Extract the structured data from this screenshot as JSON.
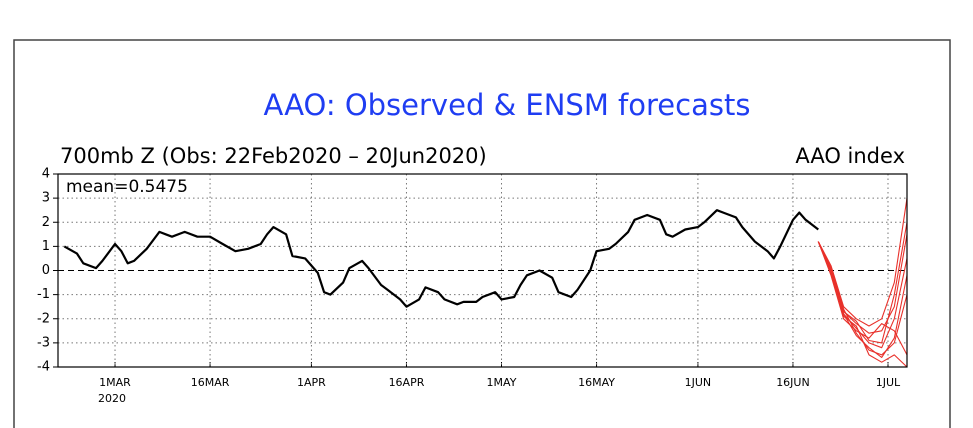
{
  "chart_data": {
    "type": "line",
    "title": "AAO: Observed & ENSM forecasts",
    "subtitle": "700mb Z (Obs: 22Feb2020 – 20Jun2020)",
    "y_label": "AAO index",
    "annotation": "mean=0.5475",
    "x_year_label": "2020",
    "xlim": [
      "2020-02-21",
      "2020-07-04"
    ],
    "xticks": [
      {
        "value": "2020-03-01",
        "label": "1MAR"
      },
      {
        "value": "2020-03-16",
        "label": "16MAR"
      },
      {
        "value": "2020-04-01",
        "label": "1APR"
      },
      {
        "value": "2020-04-16",
        "label": "16APR"
      },
      {
        "value": "2020-05-01",
        "label": "1MAY"
      },
      {
        "value": "2020-05-16",
        "label": "16MAY"
      },
      {
        "value": "2020-06-01",
        "label": "1JUN"
      },
      {
        "value": "2020-06-16",
        "label": "16JUN"
      },
      {
        "value": "2020-07-01",
        "label": "1JUL"
      }
    ],
    "ylim": [
      -4,
      4
    ],
    "yticks": [
      -4,
      -3,
      -2,
      -1,
      0,
      1,
      2,
      3,
      4
    ],
    "grid": true,
    "series": [
      {
        "color": "#000000",
        "x": [
          "2020-02-22",
          "2020-02-24",
          "2020-02-25",
          "2020-02-27",
          "2020-02-28",
          "2020-03-01",
          "2020-03-02",
          "2020-03-03",
          "2020-03-04",
          "2020-03-06",
          "2020-03-08",
          "2020-03-09",
          "2020-03-10",
          "2020-03-12",
          "2020-03-14",
          "2020-03-16",
          "2020-03-18",
          "2020-03-20",
          "2020-03-22",
          "2020-03-24",
          "2020-03-25",
          "2020-03-26",
          "2020-03-28",
          "2020-03-29",
          "2020-03-31",
          "2020-04-02",
          "2020-04-03",
          "2020-04-04",
          "2020-04-06",
          "2020-04-07",
          "2020-04-09",
          "2020-04-10",
          "2020-04-12",
          "2020-04-13",
          "2020-04-15",
          "2020-04-16",
          "2020-04-18",
          "2020-04-19",
          "2020-04-21",
          "2020-04-22",
          "2020-04-24",
          "2020-04-25",
          "2020-04-27",
          "2020-04-28",
          "2020-04-30",
          "2020-05-01",
          "2020-05-03",
          "2020-05-04",
          "2020-05-05",
          "2020-05-07",
          "2020-05-09",
          "2020-05-10",
          "2020-05-12",
          "2020-05-13",
          "2020-05-15",
          "2020-05-16",
          "2020-05-18",
          "2020-05-19",
          "2020-05-21",
          "2020-05-22",
          "2020-05-24",
          "2020-05-26",
          "2020-05-27",
          "2020-05-28",
          "2020-05-30",
          "2020-06-01",
          "2020-06-02",
          "2020-06-04",
          "2020-06-05",
          "2020-06-07",
          "2020-06-08",
          "2020-06-10",
          "2020-06-12",
          "2020-06-13",
          "2020-06-14",
          "2020-06-16",
          "2020-06-17",
          "2020-06-18",
          "2020-06-20"
        ],
        "values": [
          1.0,
          0.7,
          0.3,
          0.1,
          0.4,
          1.1,
          0.8,
          0.3,
          0.4,
          0.9,
          1.6,
          1.5,
          1.4,
          1.6,
          1.4,
          1.4,
          1.1,
          0.8,
          0.9,
          1.1,
          1.5,
          1.8,
          1.5,
          0.6,
          0.5,
          -0.1,
          -0.9,
          -1.0,
          -0.5,
          0.1,
          0.4,
          0.1,
          -0.6,
          -0.8,
          -1.2,
          -1.5,
          -1.2,
          -0.7,
          -0.9,
          -1.2,
          -1.4,
          -1.3,
          -1.3,
          -1.1,
          -0.9,
          -1.2,
          -1.1,
          -0.6,
          -0.2,
          0.0,
          -0.3,
          -0.9,
          -1.1,
          -0.8,
          0.0,
          0.8,
          0.9,
          1.1,
          1.6,
          2.1,
          2.3,
          2.1,
          1.5,
          1.4,
          1.7,
          1.8,
          2.0,
          2.5,
          2.4,
          2.2,
          1.8,
          1.2,
          0.8,
          0.5,
          1.0,
          2.1,
          2.4,
          2.1,
          1.7
        ]
      },
      {
        "color": "#e8302a",
        "x": [
          "2020-06-20",
          "2020-06-22",
          "2020-06-24",
          "2020-06-26",
          "2020-06-28",
          "2020-06-30",
          "2020-07-02",
          "2020-07-04"
        ],
        "values": [
          1.2,
          0.2,
          -1.5,
          -2.0,
          -2.3,
          -2.0,
          -0.5,
          3.0
        ]
      },
      {
        "color": "#e8302a",
        "x": [
          "2020-06-20",
          "2020-06-22",
          "2020-06-24",
          "2020-06-26",
          "2020-06-28",
          "2020-06-30",
          "2020-07-02",
          "2020-07-04"
        ],
        "values": [
          1.2,
          0.0,
          -1.7,
          -2.2,
          -2.6,
          -2.5,
          -1.5,
          1.5
        ]
      },
      {
        "color": "#e8302a",
        "x": [
          "2020-06-20",
          "2020-06-22",
          "2020-06-24",
          "2020-06-26",
          "2020-06-28",
          "2020-06-30",
          "2020-07-02",
          "2020-07-04"
        ],
        "values": [
          1.2,
          -0.1,
          -1.8,
          -2.4,
          -3.0,
          -3.2,
          -2.0,
          0.5
        ]
      },
      {
        "color": "#e8302a",
        "x": [
          "2020-06-20",
          "2020-06-22",
          "2020-06-24",
          "2020-06-26",
          "2020-06-28",
          "2020-06-30",
          "2020-07-02",
          "2020-07-04"
        ],
        "values": [
          1.2,
          0.1,
          -1.6,
          -2.6,
          -3.3,
          -3.5,
          -3.0,
          -1.0
        ]
      },
      {
        "color": "#e8302a",
        "x": [
          "2020-06-20",
          "2020-06-22",
          "2020-06-24",
          "2020-06-26",
          "2020-06-28",
          "2020-06-30",
          "2020-07-02",
          "2020-07-04"
        ],
        "values": [
          1.2,
          -0.2,
          -2.0,
          -2.5,
          -2.8,
          -2.2,
          -2.5,
          -3.5
        ]
      },
      {
        "color": "#e8302a",
        "x": [
          "2020-06-20",
          "2020-06-22",
          "2020-06-24",
          "2020-06-26",
          "2020-06-28",
          "2020-06-30",
          "2020-07-02",
          "2020-07-04"
        ],
        "values": [
          1.2,
          0.0,
          -1.9,
          -2.3,
          -3.5,
          -3.8,
          -3.5,
          -4.0
        ]
      },
      {
        "color": "#e8302a",
        "x": [
          "2020-06-20",
          "2020-06-22",
          "2020-06-24",
          "2020-06-26",
          "2020-06-28",
          "2020-06-30",
          "2020-07-02",
          "2020-07-04"
        ],
        "values": [
          1.2,
          0.1,
          -1.7,
          -2.1,
          -2.9,
          -3.0,
          -1.0,
          2.0
        ]
      },
      {
        "color": "#e8302a",
        "x": [
          "2020-06-20",
          "2020-06-22",
          "2020-06-24",
          "2020-06-26",
          "2020-06-28",
          "2020-06-30",
          "2020-07-02",
          "2020-07-04"
        ],
        "values": [
          1.2,
          -0.1,
          -1.8,
          -2.7,
          -3.2,
          -3.6,
          -2.8,
          -0.2
        ]
      }
    ]
  }
}
